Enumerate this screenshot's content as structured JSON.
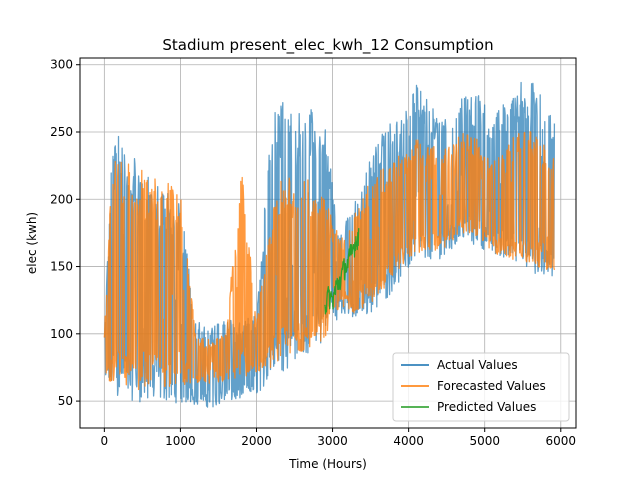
{
  "chart_data": {
    "type": "line",
    "title": "Stadium present_elec_kwh_12 Consumption",
    "xlabel": "Time (Hours)",
    "ylabel": "elec (kwh)",
    "xlim": [
      -320,
      6200
    ],
    "ylim": [
      30,
      305
    ],
    "xticks": [
      0,
      1000,
      2000,
      3000,
      4000,
      5000,
      6000
    ],
    "yticks": [
      50,
      100,
      150,
      200,
      250,
      300
    ],
    "grid": true,
    "legend_position": "lower-right",
    "legend": [
      {
        "label": "Actual Values",
        "color": "#1f77b4"
      },
      {
        "label": "Forecasted Values",
        "color": "#ff7f0e"
      },
      {
        "label": "Predicted Values",
        "color": "#2ca02c"
      }
    ],
    "series": [
      {
        "name": "Actual Values",
        "color": "#1f77b4",
        "opacity": 0.7,
        "x_range": [
          0,
          5920
        ],
        "envelope": {
          "x": [
            0,
            100,
            250,
            400,
            600,
            800,
            1000,
            1200,
            1400,
            1600,
            1800,
            2000,
            2200,
            2350,
            2500,
            2700,
            2900,
            3100,
            3300,
            3500,
            3700,
            3900,
            4100,
            4300,
            4500,
            4700,
            4900,
            5100,
            5300,
            5500,
            5700,
            5920
          ],
          "low": [
            60,
            55,
            52,
            50,
            48,
            50,
            48,
            47,
            45,
            48,
            52,
            55,
            65,
            70,
            80,
            85,
            95,
            115,
            110,
            115,
            125,
            140,
            155,
            150,
            160,
            170,
            165,
            160,
            155,
            150,
            140,
            140
          ],
          "high": [
            100,
            240,
            252,
            235,
            215,
            210,
            200,
            110,
            105,
            110,
            110,
            115,
            265,
            272,
            262,
            270,
            255,
            175,
            200,
            230,
            255,
            260,
            285,
            270,
            260,
            275,
            280,
            260,
            275,
            290,
            285,
            270
          ]
        }
      },
      {
        "name": "Forecasted Values",
        "color": "#ff7f0e",
        "opacity": 0.8,
        "x_range": [
          0,
          5920
        ],
        "envelope": {
          "x": [
            0,
            100,
            250,
            400,
            600,
            800,
            1000,
            1200,
            1400,
            1600,
            1800,
            2000,
            2200,
            2350,
            2500,
            2700,
            2900,
            3100,
            3300,
            3500,
            3700,
            3900,
            4100,
            4300,
            4500,
            4700,
            4900,
            5100,
            5300,
            5500,
            5700,
            5920
          ],
          "low": [
            65,
            62,
            60,
            58,
            60,
            60,
            62,
            62,
            62,
            65,
            65,
            68,
            75,
            80,
            85,
            88,
            95,
            120,
            115,
            120,
            135,
            150,
            160,
            160,
            165,
            175,
            170,
            160,
            155,
            150,
            150,
            145
          ],
          "high": [
            100,
            230,
            228,
            225,
            218,
            215,
            205,
            100,
            95,
            100,
            228,
            110,
            190,
            225,
            210,
            215,
            200,
            170,
            190,
            215,
            225,
            235,
            245,
            240,
            240,
            250,
            245,
            230,
            240,
            255,
            250,
            235
          ]
        }
      },
      {
        "name": "Predicted Values",
        "color": "#2ca02c",
        "opacity": 1.0,
        "x_range": [
          2900,
          3350
        ],
        "points": {
          "x": [
            2900,
            2950,
            3000,
            3050,
            3100,
            3150,
            3200,
            3250,
            3300,
            3350
          ],
          "y": [
            120,
            128,
            125,
            135,
            140,
            148,
            152,
            160,
            168,
            175
          ]
        }
      }
    ]
  }
}
